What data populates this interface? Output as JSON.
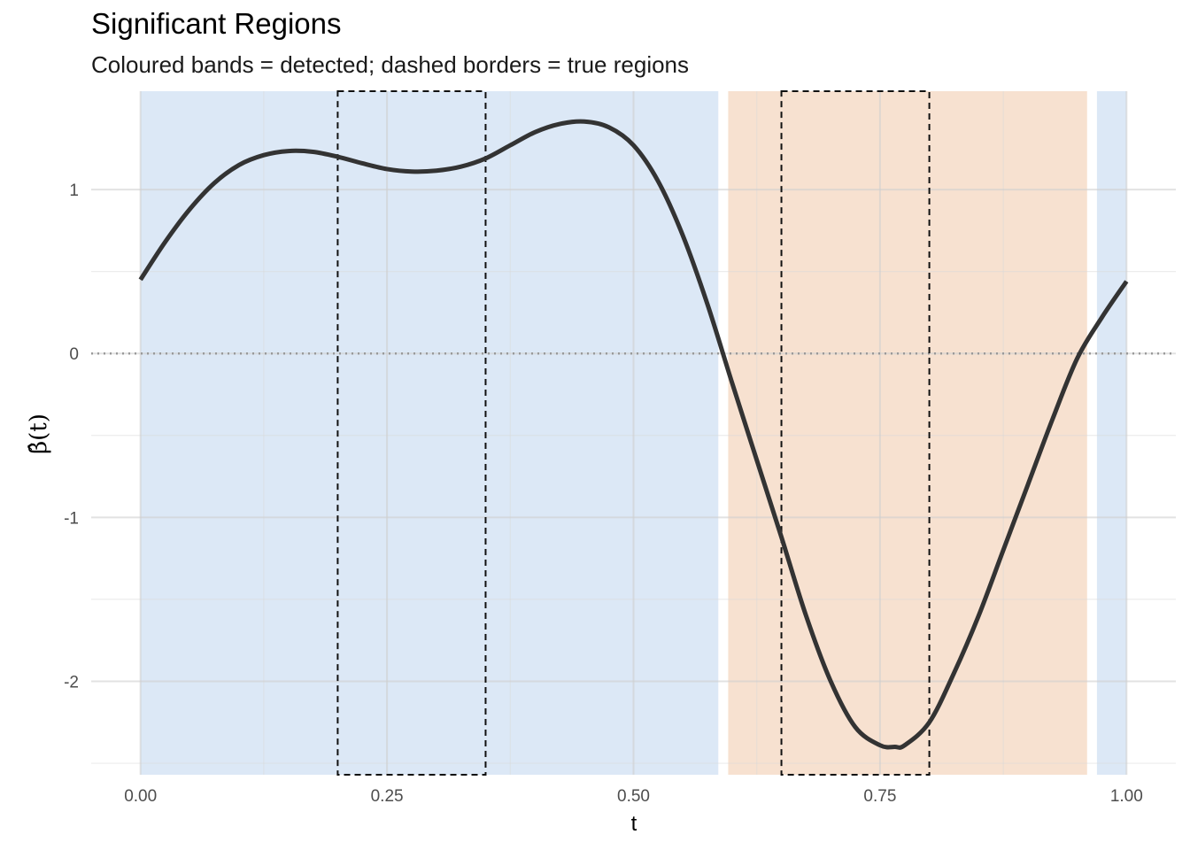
{
  "chart_data": {
    "type": "line",
    "title": "Significant Regions",
    "subtitle": "Coloured bands = detected; dashed borders = true regions",
    "xlabel": "t",
    "ylabel": "β̂(t)",
    "xlim": [
      -0.05,
      1.05
    ],
    "ylim": [
      -2.57,
      1.6
    ],
    "x_ticks": [
      0.0,
      0.25,
      0.5,
      0.75,
      1.0
    ],
    "x_tick_labels": [
      "0.00",
      "0.25",
      "0.50",
      "0.75",
      "1.00"
    ],
    "y_ticks": [
      1,
      0,
      -1,
      -2
    ],
    "y_tick_labels": [
      "1",
      "0",
      "-1",
      "-2"
    ],
    "x_minor": [
      0.125,
      0.375,
      0.625,
      0.875
    ],
    "y_minor": [
      0.5,
      -0.5,
      -1.5,
      -2.5
    ],
    "grid": true,
    "reference_line": {
      "y": 0,
      "style": "dotted",
      "color": "#999999"
    },
    "detected_regions": [
      {
        "start": 0.0,
        "end": 0.586,
        "color": "#dce8f6"
      },
      {
        "start": 0.596,
        "end": 0.96,
        "color": "#f7e1d0"
      },
      {
        "start": 0.97,
        "end": 1.0,
        "color": "#dce8f6"
      }
    ],
    "true_regions": [
      {
        "start": 0.2,
        "end": 0.35
      },
      {
        "start": 0.65,
        "end": 0.8
      }
    ],
    "series": [
      {
        "color": "#333333",
        "x": [
          0.0,
          0.025,
          0.05,
          0.075,
          0.1,
          0.125,
          0.15,
          0.175,
          0.2,
          0.225,
          0.25,
          0.275,
          0.3,
          0.325,
          0.35,
          0.375,
          0.4,
          0.425,
          0.45,
          0.475,
          0.5,
          0.525,
          0.55,
          0.575,
          0.6,
          0.625,
          0.65,
          0.675,
          0.7,
          0.725,
          0.75,
          0.765,
          0.775,
          0.8,
          0.825,
          0.85,
          0.875,
          0.9,
          0.925,
          0.95,
          0.975,
          1.0
        ],
        "y": [
          0.45,
          0.68,
          0.88,
          1.04,
          1.15,
          1.21,
          1.235,
          1.23,
          1.2,
          1.16,
          1.125,
          1.11,
          1.115,
          1.14,
          1.19,
          1.27,
          1.35,
          1.4,
          1.415,
          1.38,
          1.27,
          1.05,
          0.72,
          0.3,
          -0.18,
          -0.65,
          -1.12,
          -1.6,
          -2.0,
          -2.28,
          -2.39,
          -2.4,
          -2.39,
          -2.25,
          -1.95,
          -1.6,
          -1.2,
          -0.8,
          -0.4,
          -0.03,
          0.22,
          0.44
        ]
      }
    ]
  }
}
